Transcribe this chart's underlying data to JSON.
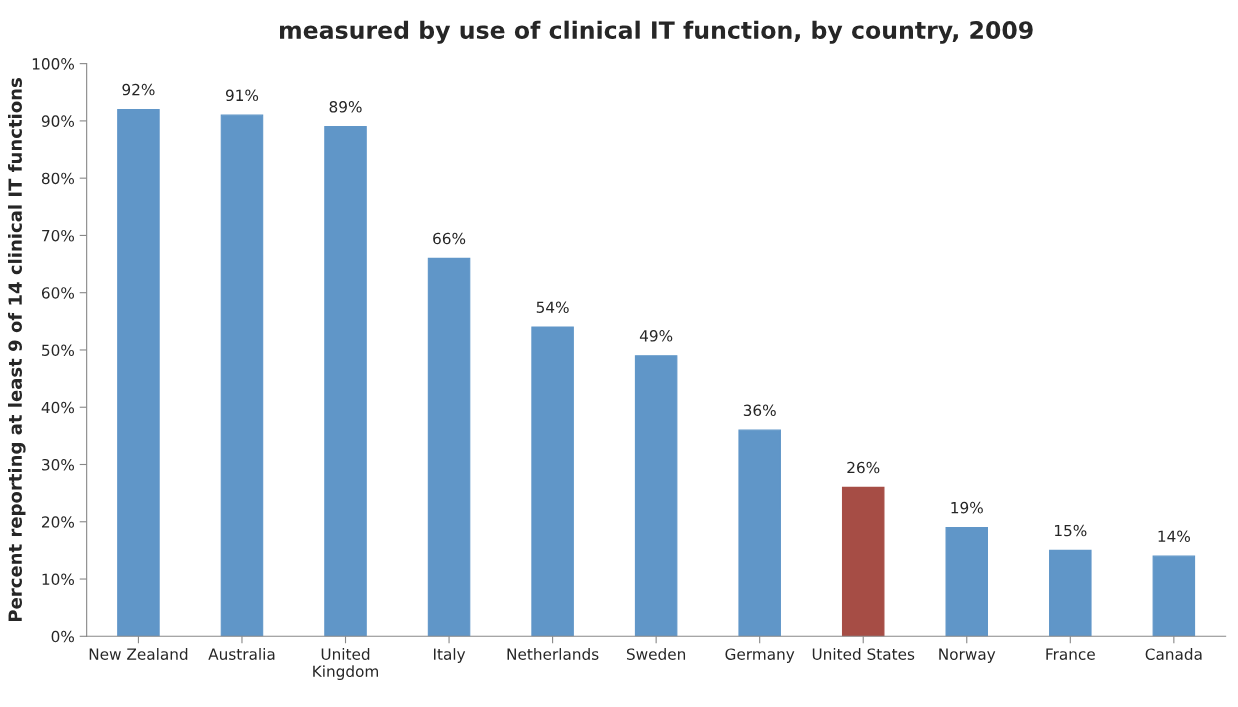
{
  "chart_data": {
    "type": "bar",
    "title": "measured by use of clinical IT function, by country, 2009",
    "ylabel": "Percent reporting at least 9 of 14 clinical IT functions",
    "categories": [
      "New Zealand",
      "Australia",
      "United\nKingdom",
      "Italy",
      "Netherlands",
      "Sweden",
      "Germany",
      "United States",
      "Norway",
      "France",
      "Canada"
    ],
    "values": [
      92,
      91,
      89,
      66,
      54,
      49,
      36,
      26,
      19,
      15,
      14
    ],
    "value_labels": [
      "92%",
      "91%",
      "89%",
      "66%",
      "54%",
      "49%",
      "36%",
      "26%",
      "19%",
      "15%",
      "14%"
    ],
    "colors": [
      "#6096c8",
      "#6096c8",
      "#6096c8",
      "#6096c8",
      "#6096c8",
      "#6096c8",
      "#6096c8",
      "#a64d45",
      "#6096c8",
      "#6096c8",
      "#6096c8"
    ],
    "ylim": [
      0,
      100
    ],
    "yticks": [
      {
        "value": 0,
        "label": "0%"
      },
      {
        "value": 10,
        "label": "10%"
      },
      {
        "value": 20,
        "label": "20%"
      },
      {
        "value": 30,
        "label": "30%"
      },
      {
        "value": 40,
        "label": "40%"
      },
      {
        "value": 50,
        "label": "50%"
      },
      {
        "value": 60,
        "label": "60%"
      },
      {
        "value": 70,
        "label": "70%"
      },
      {
        "value": 80,
        "label": "80%"
      },
      {
        "value": 90,
        "label": "90%"
      },
      {
        "value": 100,
        "label": "100%"
      }
    ],
    "grid": false,
    "legend": false
  }
}
